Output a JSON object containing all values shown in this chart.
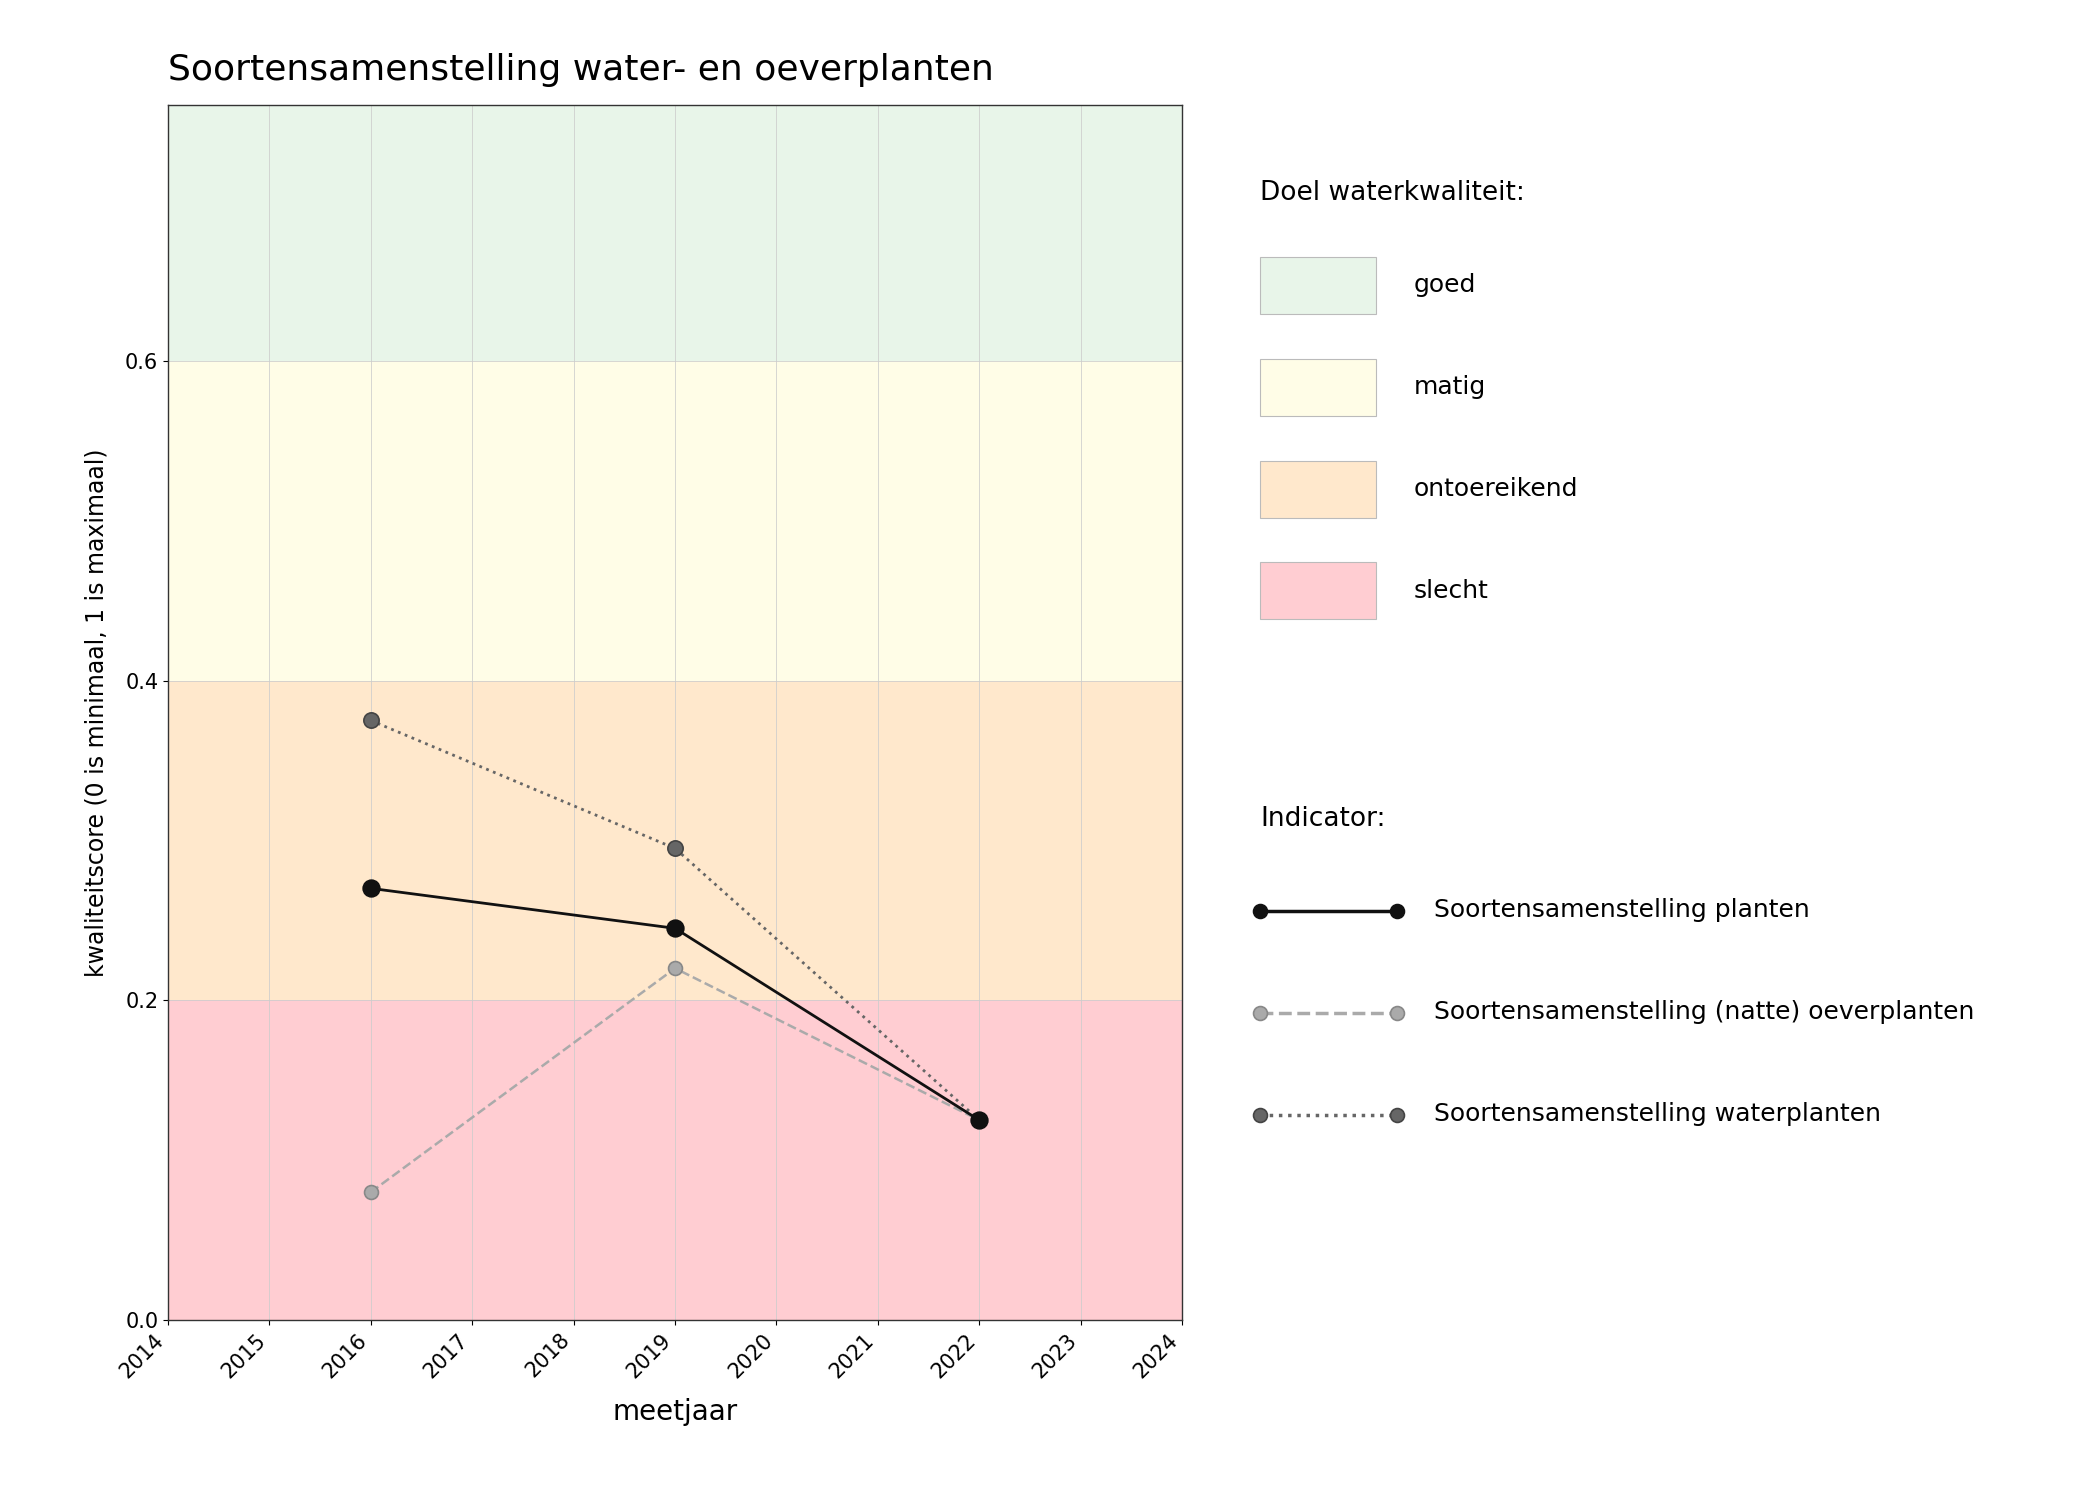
{
  "title": "Soortensamenstelling water- en oeverplanten",
  "xlabel": "meetjaar",
  "ylabel": "kwaliteitscore (0 is minimaal, 1 is maximaal)",
  "xlim": [
    2014,
    2024
  ],
  "ylim": [
    0.0,
    0.76
  ],
  "xticks": [
    2014,
    2015,
    2016,
    2017,
    2018,
    2019,
    2020,
    2021,
    2022,
    2023,
    2024
  ],
  "yticks": [
    0.0,
    0.2,
    0.4,
    0.6
  ],
  "background_bands": [
    {
      "ymin": 0.0,
      "ymax": 0.2,
      "color": "#FFCDD2",
      "label": "slecht"
    },
    {
      "ymin": 0.2,
      "ymax": 0.4,
      "color": "#FFE8CC",
      "label": "ontoereikend"
    },
    {
      "ymin": 0.4,
      "ymax": 0.6,
      "color": "#FFFDE7",
      "label": "matig"
    },
    {
      "ymin": 0.6,
      "ymax": 0.76,
      "color": "#E8F5E9",
      "label": "goed"
    }
  ],
  "series": [
    {
      "name": "Soortensamenstelling planten",
      "years": [
        2016,
        2019,
        2022
      ],
      "values": [
        0.27,
        0.245,
        0.125
      ],
      "color": "#111111",
      "linestyle": "solid",
      "linewidth": 2.0,
      "markersize": 12,
      "marker": "o",
      "markerfacecolor": "#111111",
      "markeredgecolor": "#111111",
      "zorder": 5
    },
    {
      "name": "Soortensamenstelling (natte) oeverplanten",
      "years": [
        2016,
        2019,
        2022
      ],
      "values": [
        0.08,
        0.22,
        0.125
      ],
      "color": "#aaaaaa",
      "linestyle": "dashed",
      "linewidth": 1.8,
      "markersize": 10,
      "marker": "o",
      "markerfacecolor": "#aaaaaa",
      "markeredgecolor": "#888888",
      "zorder": 4
    },
    {
      "name": "Soortensamenstelling waterplanten",
      "years": [
        2016,
        2019,
        2022
      ],
      "values": [
        0.375,
        0.295,
        0.125
      ],
      "color": "#666666",
      "linestyle": "dotted",
      "linewidth": 2.0,
      "markersize": 11,
      "marker": "o",
      "markerfacecolor": "#666666",
      "markeredgecolor": "#444444",
      "zorder": 4
    }
  ],
  "legend_title_doel": "Doel waterkwaliteit:",
  "legend_title_indicator": "Indicator:",
  "fig_width": 21.0,
  "fig_height": 15.0,
  "dpi": 100,
  "bg_color": "#ffffff",
  "grid_color": "#cccccc",
  "grid_alpha": 0.8
}
